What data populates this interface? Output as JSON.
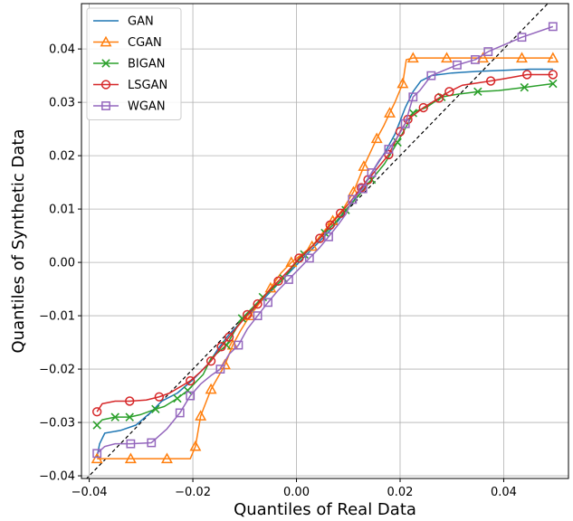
{
  "chart_data": {
    "type": "line",
    "xlabel": "Quantiles of Real Data",
    "ylabel": "Quantiles of Synthetic Data",
    "xlim": [
      -0.0415,
      0.0525
    ],
    "ylim": [
      -0.0405,
      0.0485
    ],
    "grid": true,
    "legend_position": "top-left",
    "xticks": [
      -0.04,
      -0.02,
      0.0,
      0.02,
      0.04
    ],
    "xtick_labels": [
      "−0.04",
      "−0.02",
      "0.00",
      "0.02",
      "0.04"
    ],
    "yticks": [
      -0.04,
      -0.03,
      -0.02,
      -0.01,
      0.0,
      0.01,
      0.02,
      0.03,
      0.04
    ],
    "ytick_labels": [
      "−0.04",
      "−0.03",
      "−0.02",
      "−0.01",
      "0.00",
      "0.01",
      "0.02",
      "0.03",
      "0.04"
    ],
    "reference_line": {
      "style": "dashed",
      "color": "#000000",
      "x": [
        -0.0415,
        0.0525
      ],
      "y": [
        -0.0415,
        0.0525
      ]
    },
    "series": [
      {
        "name": "GAN",
        "color": "#1f77b4",
        "marker": "none",
        "x": [
          -0.0385,
          -0.038,
          -0.037,
          -0.034,
          -0.031,
          -0.028,
          -0.026,
          -0.023,
          -0.02,
          -0.017,
          -0.015,
          -0.013,
          -0.011,
          -0.009,
          -0.007,
          -0.005,
          -0.003,
          -0.001,
          0.001,
          0.003,
          0.005,
          0.007,
          0.009,
          0.011,
          0.013,
          0.015,
          0.017,
          0.019,
          0.021,
          0.0225,
          0.024,
          0.026,
          0.03,
          0.035,
          0.04,
          0.045,
          0.0495
        ],
        "y": [
          -0.0365,
          -0.034,
          -0.032,
          -0.0315,
          -0.0305,
          -0.028,
          -0.026,
          -0.0245,
          -0.022,
          -0.019,
          -0.016,
          -0.0135,
          -0.0115,
          -0.0095,
          -0.0075,
          -0.0055,
          -0.0035,
          -0.0015,
          0.0005,
          0.0025,
          0.0045,
          0.0065,
          0.009,
          0.0115,
          0.0145,
          0.0175,
          0.0205,
          0.024,
          0.029,
          0.032,
          0.034,
          0.035,
          0.0355,
          0.0358,
          0.036,
          0.0362,
          0.0362
        ]
      },
      {
        "name": "CGAN",
        "color": "#ff7f0e",
        "marker": "triangle",
        "x": [
          -0.0385,
          -0.032,
          -0.025,
          -0.0205,
          -0.0195,
          -0.0185,
          -0.0165,
          -0.0138,
          -0.0123,
          -0.0108,
          -0.009,
          -0.007,
          -0.005,
          -0.003,
          -0.001,
          0.001,
          0.003,
          0.005,
          0.007,
          0.009,
          0.011,
          0.013,
          0.0155,
          0.0168,
          0.018,
          0.019,
          0.0205,
          0.0212,
          0.0225,
          0.029,
          0.036,
          0.0435,
          0.0495
        ],
        "y": [
          -0.0368,
          -0.0368,
          -0.0368,
          -0.0368,
          -0.0345,
          -0.0288,
          -0.0238,
          -0.0192,
          -0.0155,
          -0.0128,
          -0.01,
          -0.0075,
          -0.0048,
          -0.002,
          0.0,
          0.0015,
          0.003,
          0.0055,
          0.0078,
          0.01,
          0.0132,
          0.018,
          0.0232,
          0.0255,
          0.028,
          0.03,
          0.0335,
          0.038,
          0.0383,
          0.0383,
          0.0383,
          0.0383,
          0.0383
        ]
      },
      {
        "name": "BIGAN",
        "color": "#2ca02c",
        "marker": "x",
        "x": [
          -0.0385,
          -0.0375,
          -0.035,
          -0.0322,
          -0.03,
          -0.0272,
          -0.0255,
          -0.023,
          -0.021,
          -0.018,
          -0.0165,
          -0.0135,
          -0.012,
          -0.0105,
          -0.0085,
          -0.0065,
          -0.0045,
          -0.0025,
          -0.0005,
          0.0015,
          0.0035,
          0.0055,
          0.0075,
          0.0095,
          0.012,
          0.0145,
          0.017,
          0.0195,
          0.0215,
          0.0225,
          0.0235,
          0.025,
          0.028,
          0.031,
          0.035,
          0.039,
          0.044,
          0.0495
        ],
        "y": [
          -0.0305,
          -0.0295,
          -0.029,
          -0.029,
          -0.0285,
          -0.0275,
          -0.027,
          -0.0255,
          -0.024,
          -0.021,
          -0.018,
          -0.0155,
          -0.013,
          -0.0105,
          -0.0085,
          -0.0065,
          -0.0048,
          -0.003,
          -0.0005,
          0.0015,
          0.0035,
          0.0055,
          0.0075,
          0.0098,
          0.0125,
          0.0155,
          0.0185,
          0.0225,
          0.026,
          0.028,
          0.0285,
          0.029,
          0.031,
          0.0315,
          0.032,
          0.0322,
          0.0328,
          0.0335
        ]
      },
      {
        "name": "LSGAN",
        "color": "#d62728",
        "marker": "circle",
        "x": [
          -0.0385,
          -0.0375,
          -0.035,
          -0.0322,
          -0.029,
          -0.0265,
          -0.0245,
          -0.0205,
          -0.0185,
          -0.0165,
          -0.0145,
          -0.013,
          -0.0115,
          -0.0095,
          -0.0075,
          -0.0055,
          -0.0035,
          -0.0015,
          0.0005,
          0.0025,
          0.0045,
          0.0065,
          0.0085,
          0.0105,
          0.0125,
          0.0138,
          0.0155,
          0.0178,
          0.02,
          0.0215,
          0.0245,
          0.0275,
          0.0295,
          0.032,
          0.0375,
          0.0405,
          0.0445,
          0.0495
        ],
        "y": [
          -0.028,
          -0.0265,
          -0.026,
          -0.026,
          -0.0258,
          -0.0252,
          -0.0245,
          -0.0222,
          -0.0205,
          -0.0185,
          -0.0158,
          -0.014,
          -0.0122,
          -0.0098,
          -0.0078,
          -0.0055,
          -0.0035,
          -0.0015,
          0.0008,
          0.0025,
          0.0045,
          0.007,
          0.0092,
          0.0115,
          0.014,
          0.0155,
          0.0175,
          0.0202,
          0.0245,
          0.0268,
          0.029,
          0.0308,
          0.032,
          0.0332,
          0.034,
          0.0345,
          0.0352,
          0.0352
        ]
      },
      {
        "name": "WGAN",
        "color": "#9467bd",
        "marker": "square",
        "x": [
          -0.0385,
          -0.037,
          -0.035,
          -0.032,
          -0.028,
          -0.0265,
          -0.025,
          -0.0225,
          -0.0205,
          -0.0185,
          -0.0165,
          -0.0147,
          -0.013,
          -0.0112,
          -0.0095,
          -0.0075,
          -0.0055,
          -0.0035,
          -0.0015,
          0.0005,
          0.0025,
          0.0045,
          0.0062,
          0.008,
          0.0095,
          0.0108,
          0.0128,
          0.0145,
          0.016,
          0.0178,
          0.0195,
          0.021,
          0.0225,
          0.0238,
          0.026,
          0.031,
          0.0345,
          0.037,
          0.0435,
          0.0495
        ],
        "y": [
          -0.0358,
          -0.0345,
          -0.034,
          -0.034,
          -0.0338,
          -0.0325,
          -0.0312,
          -0.0282,
          -0.025,
          -0.0228,
          -0.0212,
          -0.02,
          -0.0172,
          -0.0155,
          -0.0125,
          -0.01,
          -0.0075,
          -0.0052,
          -0.0032,
          -0.0012,
          0.0008,
          0.0028,
          0.0048,
          0.007,
          0.009,
          0.0118,
          0.0138,
          0.0168,
          0.0192,
          0.0212,
          0.0235,
          0.026,
          0.031,
          0.0322,
          0.035,
          0.037,
          0.038,
          0.0395,
          0.0422,
          0.0442
        ]
      }
    ],
    "marker_indices": {
      "CGAN": [
        0,
        1,
        2,
        4,
        5,
        6,
        7,
        8,
        10,
        12,
        14,
        16,
        18,
        20,
        21,
        22,
        24,
        26,
        28,
        29,
        30,
        31,
        32
      ],
      "BIGAN": [
        0,
        2,
        3,
        5,
        7,
        8,
        11,
        13,
        15,
        17,
        19,
        21,
        23,
        25,
        27,
        29,
        32,
        34,
        36,
        37
      ],
      "LSGAN": [
        0,
        3,
        5,
        7,
        9,
        10,
        11,
        13,
        14,
        16,
        18,
        20,
        21,
        22,
        24,
        25,
        27,
        28,
        29,
        30,
        31,
        32,
        34,
        36,
        37
      ],
      "WGAN": [
        0,
        3,
        4,
        7,
        8,
        11,
        13,
        15,
        16,
        18,
        20,
        22,
        25,
        26,
        27,
        29,
        31,
        32,
        34,
        35,
        36,
        37,
        38,
        39
      ]
    }
  }
}
